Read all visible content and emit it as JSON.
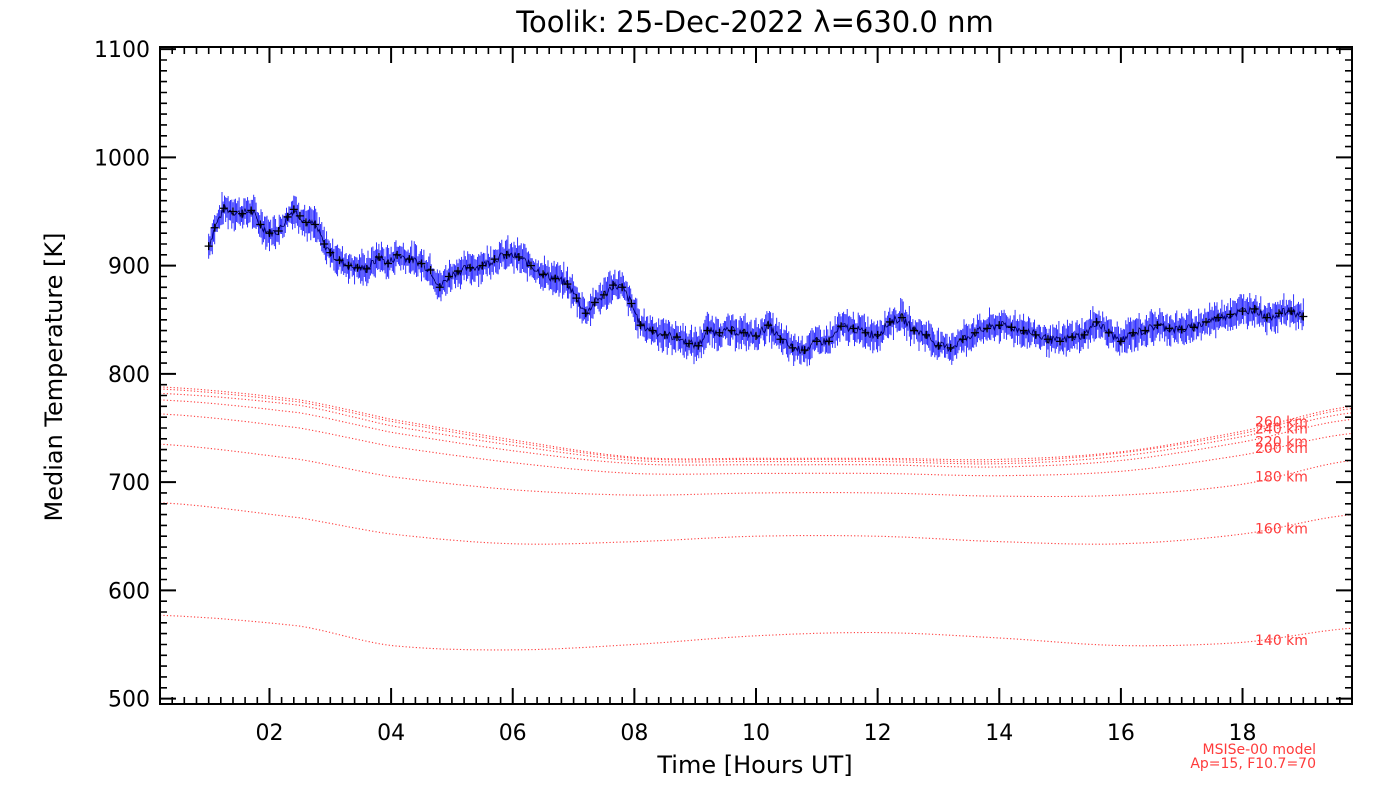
{
  "chart_data": {
    "type": "line",
    "title": "Toolik: 25-Dec-2022 λ=630.0 nm",
    "xlabel": "Time [Hours UT]",
    "ylabel": "Median Temperature [K]",
    "xlim": [
      0.2,
      19.8
    ],
    "ylim": [
      495,
      1102
    ],
    "xticks": [
      2,
      4,
      6,
      8,
      10,
      12,
      14,
      16,
      18
    ],
    "xtick_labels": [
      "02",
      "04",
      "06",
      "08",
      "10",
      "12",
      "14",
      "16",
      "18"
    ],
    "yticks": [
      500,
      600,
      700,
      800,
      900,
      1000,
      1100
    ],
    "ytick_labels": [
      "500",
      "600",
      "700",
      "800",
      "900",
      "1000",
      "1100"
    ],
    "grid": false,
    "colors": {
      "observed": "#000066",
      "errorbar": "#1a1aff",
      "model": "#ff3b3b",
      "axes": "#000000"
    },
    "observed": {
      "x": [
        1.0,
        1.1,
        1.25,
        1.4,
        1.55,
        1.7,
        1.85,
        2.0,
        2.15,
        2.3,
        2.4,
        2.5,
        2.6,
        2.75,
        2.9,
        3.0,
        3.15,
        3.3,
        3.45,
        3.6,
        3.8,
        3.95,
        4.1,
        4.3,
        4.5,
        4.65,
        4.8,
        4.95,
        5.1,
        5.3,
        5.5,
        5.7,
        5.9,
        6.1,
        6.3,
        6.5,
        6.7,
        6.9,
        7.05,
        7.2,
        7.35,
        7.5,
        7.65,
        7.8,
        7.95,
        8.1,
        8.3,
        8.5,
        8.7,
        8.9,
        9.05,
        9.2,
        9.4,
        9.6,
        9.8,
        10.0,
        10.2,
        10.4,
        10.6,
        10.8,
        11.0,
        11.2,
        11.4,
        11.6,
        11.8,
        12.0,
        12.2,
        12.4,
        12.6,
        12.8,
        13.0,
        13.2,
        13.4,
        13.6,
        13.8,
        14.0,
        14.2,
        14.4,
        14.6,
        14.8,
        15.0,
        15.2,
        15.4,
        15.6,
        15.8,
        16.0,
        16.2,
        16.4,
        16.6,
        16.8,
        17.0,
        17.2,
        17.4,
        17.6,
        17.8,
        18.0,
        18.2,
        18.4,
        18.6,
        18.8,
        19.0
      ],
      "y": [
        918,
        935,
        953,
        950,
        948,
        951,
        938,
        930,
        932,
        945,
        952,
        946,
        940,
        938,
        920,
        912,
        905,
        900,
        898,
        897,
        908,
        902,
        910,
        906,
        902,
        896,
        880,
        890,
        895,
        898,
        900,
        906,
        910,
        908,
        900,
        892,
        888,
        883,
        870,
        856,
        866,
        873,
        882,
        880,
        865,
        845,
        840,
        836,
        834,
        828,
        826,
        840,
        838,
        840,
        838,
        835,
        845,
        832,
        824,
        822,
        830,
        830,
        844,
        842,
        838,
        836,
        848,
        852,
        840,
        836,
        826,
        824,
        832,
        838,
        842,
        845,
        843,
        840,
        836,
        832,
        830,
        834,
        836,
        848,
        838,
        830,
        838,
        840,
        845,
        842,
        841,
        843,
        848,
        852,
        855,
        858,
        860,
        852,
        856,
        858,
        853
      ],
      "err": 11
    },
    "model_note": [
      "MSISe-00 model",
      "Ap=15, F10.7=70"
    ],
    "model_curves": [
      {
        "altitude_label": "140 km",
        "profile": [
          [
            0.2,
            577
          ],
          [
            2.5,
            567
          ],
          [
            4.0,
            549
          ],
          [
            6.0,
            545
          ],
          [
            8.0,
            550
          ],
          [
            10.0,
            558
          ],
          [
            12.0,
            561
          ],
          [
            14.0,
            556
          ],
          [
            16.0,
            549
          ],
          [
            18.0,
            552
          ],
          [
            19.8,
            565
          ]
        ]
      },
      {
        "altitude_label": "160 km",
        "profile": [
          [
            0.2,
            681
          ],
          [
            2.5,
            667
          ],
          [
            4.0,
            652
          ],
          [
            6.0,
            643
          ],
          [
            8.0,
            645
          ],
          [
            10.0,
            650
          ],
          [
            12.0,
            650
          ],
          [
            14.0,
            645
          ],
          [
            16.0,
            643
          ],
          [
            18.0,
            652
          ],
          [
            19.8,
            670
          ]
        ]
      },
      {
        "altitude_label": "180 km",
        "profile": [
          [
            0.2,
            735
          ],
          [
            2.5,
            721
          ],
          [
            4.0,
            705
          ],
          [
            6.0,
            693
          ],
          [
            8.0,
            688
          ],
          [
            10.0,
            690
          ],
          [
            12.0,
            690
          ],
          [
            14.0,
            687
          ],
          [
            16.0,
            688
          ],
          [
            18.0,
            698
          ],
          [
            19.8,
            720
          ]
        ]
      },
      {
        "altitude_label": "200 km",
        "profile": [
          [
            0.2,
            763
          ],
          [
            2.5,
            750
          ],
          [
            4.0,
            733
          ],
          [
            6.0,
            718
          ],
          [
            8.0,
            708
          ],
          [
            10.0,
            708
          ],
          [
            12.0,
            708
          ],
          [
            14.0,
            706
          ],
          [
            16.0,
            710
          ],
          [
            18.0,
            725
          ],
          [
            19.8,
            745
          ]
        ]
      },
      {
        "altitude_label": "220 km",
        "profile": [
          [
            0.2,
            776
          ],
          [
            2.5,
            764
          ],
          [
            4.0,
            746
          ],
          [
            6.0,
            729
          ],
          [
            8.0,
            717
          ],
          [
            10.0,
            716
          ],
          [
            12.0,
            716
          ],
          [
            14.0,
            714
          ],
          [
            16.0,
            720
          ],
          [
            18.0,
            737
          ],
          [
            19.8,
            758
          ]
        ]
      },
      {
        "altitude_label": "240 km",
        "profile": [
          [
            0.2,
            782
          ],
          [
            2.5,
            771
          ],
          [
            4.0,
            752
          ],
          [
            6.0,
            734
          ],
          [
            8.0,
            720
          ],
          [
            10.0,
            719
          ],
          [
            12.0,
            719
          ],
          [
            14.0,
            717
          ],
          [
            16.0,
            724
          ],
          [
            18.0,
            742
          ],
          [
            19.8,
            764
          ]
        ]
      },
      {
        "altitude_label": "260 km",
        "profile": [
          [
            0.2,
            786
          ],
          [
            2.5,
            774
          ],
          [
            4.0,
            756
          ],
          [
            6.0,
            737
          ],
          [
            8.0,
            722
          ],
          [
            10.0,
            721
          ],
          [
            12.0,
            721
          ],
          [
            14.0,
            719
          ],
          [
            16.0,
            727
          ],
          [
            18.0,
            745
          ],
          [
            19.8,
            768
          ]
        ]
      },
      {
        "altitude_label": "",
        "profile": [
          [
            0.2,
            788
          ],
          [
            2.5,
            776
          ],
          [
            4.0,
            758
          ],
          [
            6.0,
            739
          ],
          [
            8.0,
            723
          ],
          [
            10.0,
            722
          ],
          [
            12.0,
            722
          ],
          [
            14.0,
            721
          ],
          [
            16.0,
            728
          ],
          [
            18.0,
            747
          ],
          [
            19.8,
            770
          ]
        ]
      }
    ]
  }
}
